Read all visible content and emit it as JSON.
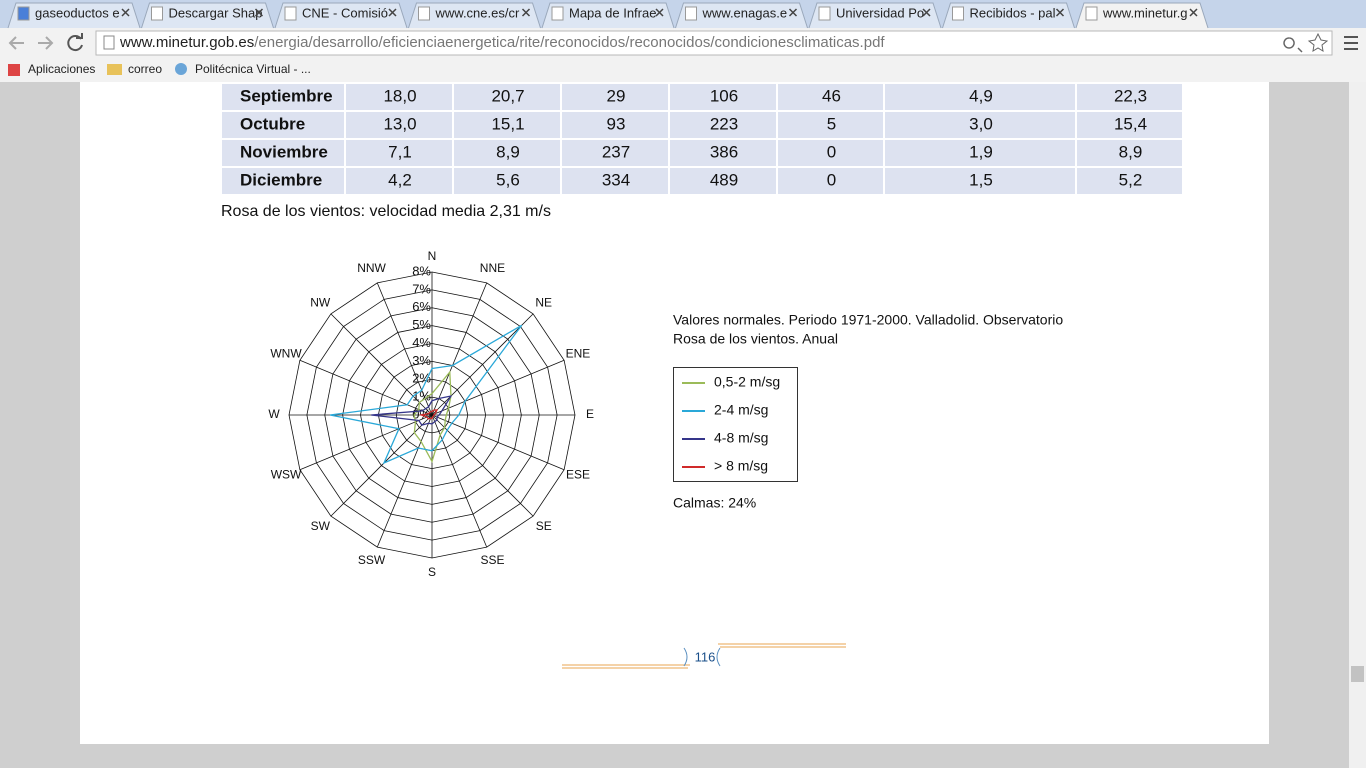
{
  "tabs": [
    "gaseoductos e",
    "Descargar Shap",
    "CNE - Comisió",
    "www.cne.es/cr",
    "Mapa de Infrae",
    "www.enagas.e",
    "Universidad Po",
    "Recibidos - pal",
    "www.minetur.g"
  ],
  "address": {
    "host": "www.minetur.gob.es",
    "path": "/energia/desarrollo/eficienciaenergetica/rite/reconocidos/reconocidos/condicionesclimaticas.pdf"
  },
  "bookmarks": [
    "Aplicaciones",
    "correo",
    "Politécnica Virtual - ..."
  ],
  "table": {
    "rows": [
      [
        "Septiembre",
        "18,0",
        "20,7",
        "29",
        "106",
        "46",
        "4,9",
        "22,3"
      ],
      [
        "Octubre",
        "13,0",
        "15,1",
        "93",
        "223",
        "5",
        "3,0",
        "15,4"
      ],
      [
        "Noviembre",
        "7,1",
        "8,9",
        "237",
        "386",
        "0",
        "1,9",
        "8,9"
      ],
      [
        "Diciembre",
        "4,2",
        "5,6",
        "334",
        "489",
        "0",
        "1,5",
        "5,2"
      ]
    ]
  },
  "caption": "Rosa de los vientos: velocidad media 2,31 m/s",
  "chart_data": {
    "type": "radar",
    "title": "Valores normales. Periodo 1971-2000. Valladolid. Observatorio",
    "subtitle": "Rosa de los vientos. Anual",
    "annotation": "Calmas: 24%",
    "categories": [
      "N",
      "NNE",
      "NE",
      "ENE",
      "E",
      "ESE",
      "SE",
      "SSE",
      "S",
      "SSW",
      "SW",
      "WSW",
      "W",
      "WNW",
      "NW",
      "NNW"
    ],
    "rlim": [
      0,
      8
    ],
    "rticks": [
      {
        "value": 0,
        "label": "0%"
      },
      {
        "value": 1,
        "label": "1%"
      },
      {
        "value": 2,
        "label": "2%"
      },
      {
        "value": 3,
        "label": "3%"
      },
      {
        "value": 4,
        "label": "4%"
      },
      {
        "value": 5,
        "label": "5%"
      },
      {
        "value": 6,
        "label": "6%"
      },
      {
        "value": 7,
        "label": "7%"
      },
      {
        "value": 8,
        "label": "8%"
      }
    ],
    "series": [
      {
        "name": "0,5-2 m/sg",
        "color": "#9bbb59",
        "values": [
          1.2,
          2.6,
          1.5,
          1,
          0.8,
          0.8,
          1,
          1.2,
          2.6,
          1.6,
          1.4,
          1,
          1,
          0.8,
          1,
          1
        ]
      },
      {
        "name": "2-4 m/sg",
        "color": "#2aa8d8",
        "values": [
          2.6,
          3,
          7.1,
          2,
          1.5,
          1.2,
          1.2,
          1.5,
          2,
          2,
          3.8,
          2,
          5.7,
          1.5,
          1.5,
          1.5
        ]
      },
      {
        "name": "4-8 m/sg",
        "color": "#35358a",
        "values": [
          0.8,
          1,
          1.5,
          0.6,
          0.4,
          0.3,
          0.4,
          0.4,
          0.5,
          0.5,
          0.8,
          0.8,
          3.4,
          0.6,
          0.5,
          0.5
        ]
      },
      {
        "name": "> 8 m/sg",
        "color": "#d02a2a",
        "values": [
          0.2,
          0.3,
          0.4,
          0.2,
          0.1,
          0.1,
          0.1,
          0.1,
          0.2,
          0.2,
          0.3,
          0.3,
          0.6,
          0.2,
          0.2,
          0.2
        ]
      }
    ]
  },
  "page_number": "116"
}
